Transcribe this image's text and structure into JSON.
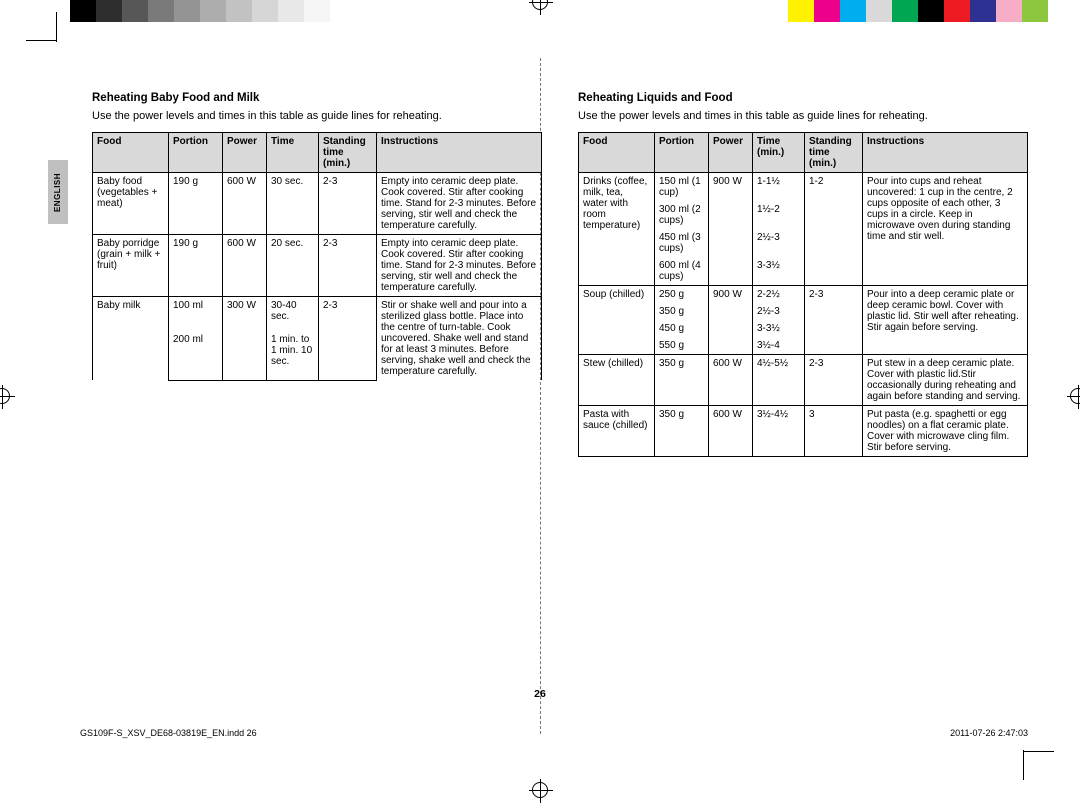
{
  "colorbars": {
    "left": [
      "#000000",
      "#2e2e2e",
      "#575757",
      "#7a7a7a",
      "#949494",
      "#adadad",
      "#c2c2c2",
      "#d6d6d6",
      "#e8e8e8",
      "#f5f5f5"
    ],
    "right": [
      "#fff200",
      "#ec008c",
      "#00aeef",
      "#d9d9d9",
      "#00a651",
      "#000000",
      "#ed1c24",
      "#2e3192",
      "#f7adc6",
      "#8dc63f"
    ]
  },
  "language_tab": "ENGLISH",
  "page_number": "26",
  "footer_left": "GS109F-S_XSV_DE68-03819E_EN.indd   26",
  "footer_right": "2011-07-26   2:47:03",
  "sections": [
    {
      "title": "Reheating Baby Food and Milk",
      "intro": "Use the power levels and times in this table as guide lines for reheating.",
      "headers": [
        "Food",
        "Portion",
        "Power",
        "Time",
        "Standing time (min.)",
        "Instructions"
      ],
      "groups": [
        {
          "food": "Baby food (vegetables + meat)",
          "rows": [
            [
              "190 g",
              "600 W",
              "30 sec.",
              "2-3"
            ]
          ],
          "instructions": "Empty into ceramic deep plate. Cook covered. Stir after cooking time. Stand for 2-3 minutes. Before serving, stir well and check the temperature carefully."
        },
        {
          "food": "Baby porridge (grain + milk + fruit)",
          "rows": [
            [
              "190 g",
              "600 W",
              "20 sec.",
              "2-3"
            ]
          ],
          "instructions": "Empty into ceramic deep plate. Cook covered. Stir after cooking time. Stand for 2-3 minutes. Before serving, stir well and check the temperature carefully."
        },
        {
          "food": "Baby milk",
          "rows": [
            [
              "100 ml",
              "300 W",
              "30-40 sec.",
              "2-3"
            ],
            [
              "200 ml",
              "",
              "1 min. to 1 min. 10 sec.",
              ""
            ]
          ],
          "instructions": "Stir or shake well and pour into a sterilized glass bottle. Place into the centre of turn-table. Cook uncovered. Shake well and stand for at least 3 minutes. Before serving, shake well and check the temperature carefully."
        }
      ]
    },
    {
      "title": "Reheating Liquids and Food",
      "intro": "Use the power levels and times in this table as guide lines for reheating.",
      "headers": [
        "Food",
        "Portion",
        "Power",
        "Time (min.)",
        "Standing time (min.)",
        "Instructions"
      ],
      "groups": [
        {
          "food": "Drinks (coffee, milk, tea, water with room temperature)",
          "rows": [
            [
              "150 ml (1 cup)",
              "900 W",
              "1-1½",
              "1-2"
            ],
            [
              "300 ml (2 cups)",
              "",
              "1½-2",
              ""
            ],
            [
              "450 ml (3 cups)",
              "",
              "2½-3",
              ""
            ],
            [
              "600 ml (4 cups)",
              "",
              "3-3½",
              ""
            ]
          ],
          "instructions": "Pour into cups and reheat uncovered: 1 cup in the centre, 2 cups opposite of each other, 3 cups in a circle. Keep in microwave oven during standing time and stir well."
        },
        {
          "food": "Soup (chilled)",
          "rows": [
            [
              "250 g",
              "900 W",
              "2-2½",
              "2-3"
            ],
            [
              "350 g",
              "",
              "2½-3",
              ""
            ],
            [
              "450 g",
              "",
              "3-3½",
              ""
            ],
            [
              "550 g",
              "",
              "3½-4",
              ""
            ]
          ],
          "instructions": "Pour into a deep ceramic plate or deep ceramic bowl. Cover with plastic lid. Stir well after reheating. Stir again before serving."
        },
        {
          "food": "Stew (chilled)",
          "rows": [
            [
              "350 g",
              "600 W",
              "4½-5½",
              "2-3"
            ]
          ],
          "instructions": "Put stew in a deep ceramic plate. Cover with plastic lid.Stir occasionally during reheating and again before standing and serving."
        },
        {
          "food": "Pasta with sauce (chilled)",
          "rows": [
            [
              "350 g",
              "600 W",
              "3½-4½",
              "3"
            ]
          ],
          "instructions": "Put pasta (e.g. spaghetti or egg noodles) on a flat ceramic plate. Cover with microwave cling film. Stir before serving."
        }
      ]
    }
  ]
}
